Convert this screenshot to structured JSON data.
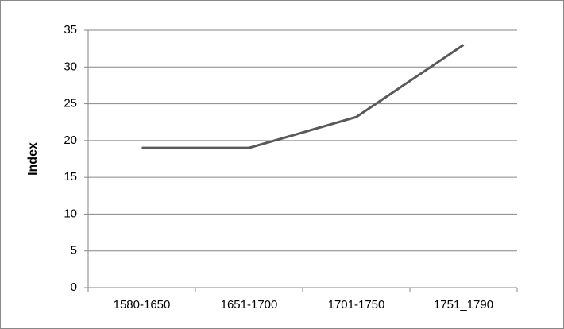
{
  "chart_data": {
    "type": "line",
    "y_label": "Index",
    "categories": [
      "1580-1650",
      "1651-1700",
      "1701-1750",
      "1751_1790"
    ],
    "values": [
      19,
      19,
      23.2,
      33
    ],
    "color": "#595959",
    "ylim": [
      0,
      35
    ],
    "yticks": [
      0,
      5,
      10,
      15,
      20,
      25,
      30,
      35
    ],
    "grid": true
  }
}
